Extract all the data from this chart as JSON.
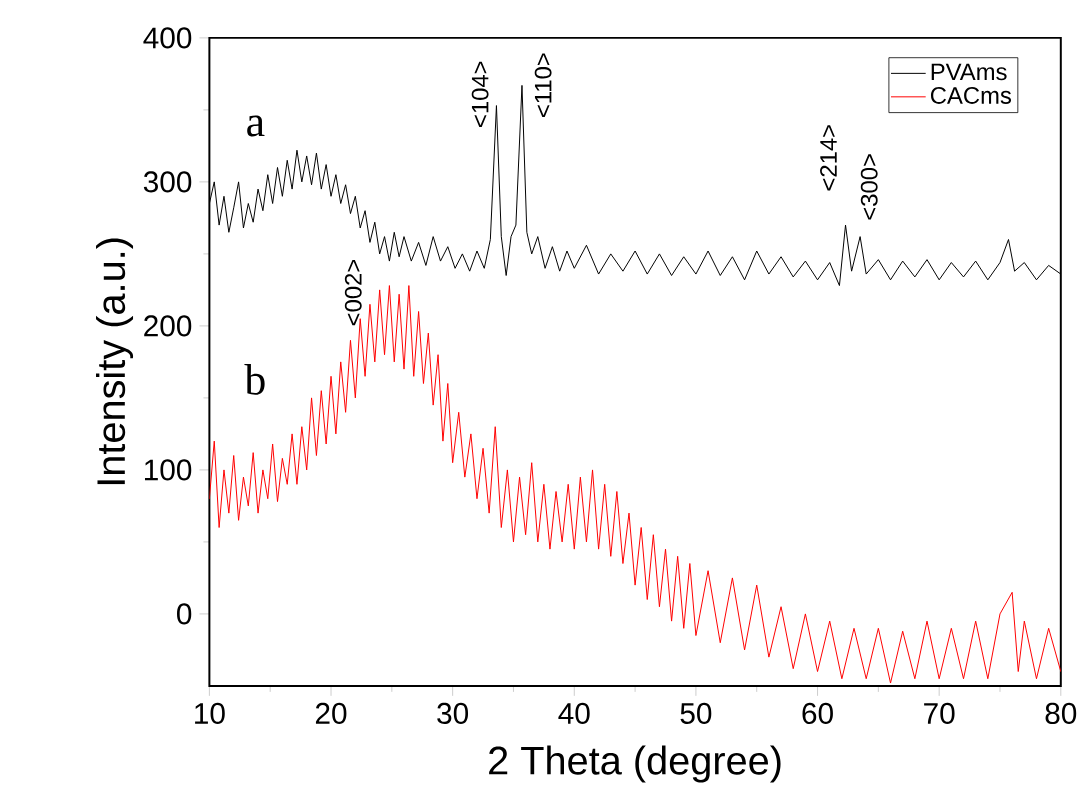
{
  "chart_data": {
    "type": "line",
    "xlabel": "2 Theta (degree)",
    "ylabel": "Intensity (a.u.)",
    "xlim": [
      10,
      80
    ],
    "ylim": [
      -50,
      400
    ],
    "xticks": [
      10,
      20,
      30,
      40,
      50,
      60,
      70,
      80
    ],
    "yticks": [
      0,
      100,
      200,
      300,
      400
    ],
    "legend": "top right",
    "grid": false,
    "annotations": [
      "a",
      "b",
      "<104>",
      "<110>",
      "<214>",
      "<300>",
      "<002>"
    ],
    "series": [
      {
        "name": "PVAms",
        "color": "#000000",
        "x": [
          10,
          10.4,
          10.8,
          11.2,
          11.6,
          12,
          12.4,
          12.8,
          13.2,
          13.6,
          14,
          14.4,
          14.8,
          15.2,
          15.6,
          16,
          16.4,
          16.8,
          17.2,
          17.6,
          18,
          18.4,
          18.8,
          19.2,
          19.6,
          20,
          20.4,
          20.8,
          21.2,
          21.6,
          22,
          22.4,
          22.8,
          23.2,
          23.6,
          24,
          24.4,
          24.8,
          25.2,
          25.6,
          26,
          26.6,
          27.2,
          27.8,
          28.4,
          29,
          29.6,
          30.2,
          30.8,
          31.4,
          32,
          32.6,
          33.1,
          33.6,
          34.0,
          34.4,
          34.8,
          35.2,
          35.7,
          36.1,
          36.5,
          37,
          37.6,
          38.2,
          38.8,
          39.4,
          40,
          41,
          42,
          43,
          44,
          45,
          46,
          47,
          48,
          49,
          50,
          51,
          52,
          53,
          54,
          55,
          56,
          57,
          58,
          59,
          60,
          61,
          61.8,
          62.3,
          62.8,
          63.5,
          64,
          65,
          66,
          67,
          68,
          69,
          70,
          71,
          72,
          73,
          74,
          75,
          75.7,
          76.2,
          77,
          78,
          79,
          80
        ],
        "values": [
          285,
          300,
          270,
          290,
          265,
          282,
          300,
          268,
          285,
          272,
          295,
          280,
          305,
          285,
          310,
          290,
          315,
          295,
          322,
          300,
          318,
          298,
          320,
          295,
          312,
          290,
          305,
          285,
          298,
          278,
          290,
          268,
          280,
          258,
          272,
          250,
          262,
          245,
          265,
          248,
          262,
          245,
          258,
          242,
          262,
          245,
          255,
          240,
          250,
          238,
          252,
          240,
          260,
          353,
          262,
          235,
          262,
          270,
          367,
          265,
          250,
          262,
          240,
          255,
          238,
          252,
          240,
          256,
          236,
          250,
          238,
          252,
          236,
          250,
          235,
          248,
          236,
          252,
          235,
          248,
          232,
          252,
          236,
          248,
          234,
          245,
          232,
          244,
          228,
          270,
          238,
          262,
          236,
          246,
          232,
          245,
          234,
          246,
          232,
          244,
          234,
          245,
          232,
          244,
          260,
          238,
          244,
          232,
          242,
          236
        ]
      },
      {
        "name": "CACms",
        "color": "#ff0000",
        "x": [
          10,
          10.4,
          10.8,
          11.2,
          11.6,
          12,
          12.4,
          12.8,
          13.2,
          13.6,
          14,
          14.4,
          14.8,
          15.2,
          15.6,
          16,
          16.4,
          16.8,
          17.2,
          17.6,
          18,
          18.4,
          18.8,
          19.2,
          19.6,
          20,
          20.4,
          20.8,
          21.2,
          21.6,
          22,
          22.4,
          22.8,
          23.2,
          23.6,
          24,
          24.4,
          24.8,
          25.2,
          25.6,
          26,
          26.4,
          26.8,
          27.2,
          27.6,
          28,
          28.4,
          28.8,
          29.2,
          29.6,
          30,
          30.5,
          31,
          31.5,
          32,
          32.5,
          33,
          33.5,
          34,
          34.5,
          35,
          35.5,
          36,
          36.5,
          37,
          37.5,
          38,
          38.5,
          39,
          39.5,
          40,
          40.5,
          41,
          41.5,
          42,
          42.5,
          43,
          43.5,
          44,
          44.5,
          45,
          45.5,
          46,
          46.5,
          47,
          47.5,
          48,
          48.5,
          49,
          49.5,
          50,
          51,
          52,
          53,
          54,
          55,
          56,
          57,
          58,
          59,
          60,
          61,
          62,
          63,
          64,
          65,
          66,
          67,
          68,
          69,
          70,
          71,
          72,
          73,
          74,
          75,
          76,
          76.5,
          77,
          78,
          79,
          80
        ],
        "values": [
          80,
          120,
          60,
          100,
          70,
          110,
          65,
          95,
          75,
          112,
          70,
          100,
          80,
          118,
          78,
          108,
          90,
          125,
          90,
          130,
          100,
          150,
          110,
          155,
          118,
          165,
          125,
          175,
          140,
          190,
          150,
          205,
          165,
          215,
          175,
          225,
          180,
          228,
          175,
          222,
          170,
          228,
          165,
          210,
          160,
          195,
          145,
          180,
          120,
          160,
          105,
          140,
          95,
          125,
          80,
          115,
          70,
          130,
          60,
          100,
          50,
          95,
          55,
          105,
          50,
          90,
          45,
          85,
          50,
          90,
          45,
          95,
          50,
          100,
          45,
          90,
          40,
          85,
          35,
          70,
          20,
          60,
          10,
          55,
          5,
          45,
          -5,
          40,
          -10,
          35,
          -15,
          30,
          -20,
          25,
          -25,
          20,
          -30,
          5,
          -38,
          0,
          -40,
          -5,
          -45,
          -10,
          -45,
          -10,
          -48,
          -12,
          -45,
          -5,
          -45,
          -10,
          -45,
          -5,
          -45,
          0,
          15,
          -40,
          -5,
          -45,
          -10,
          -40
        ]
      }
    ]
  }
}
